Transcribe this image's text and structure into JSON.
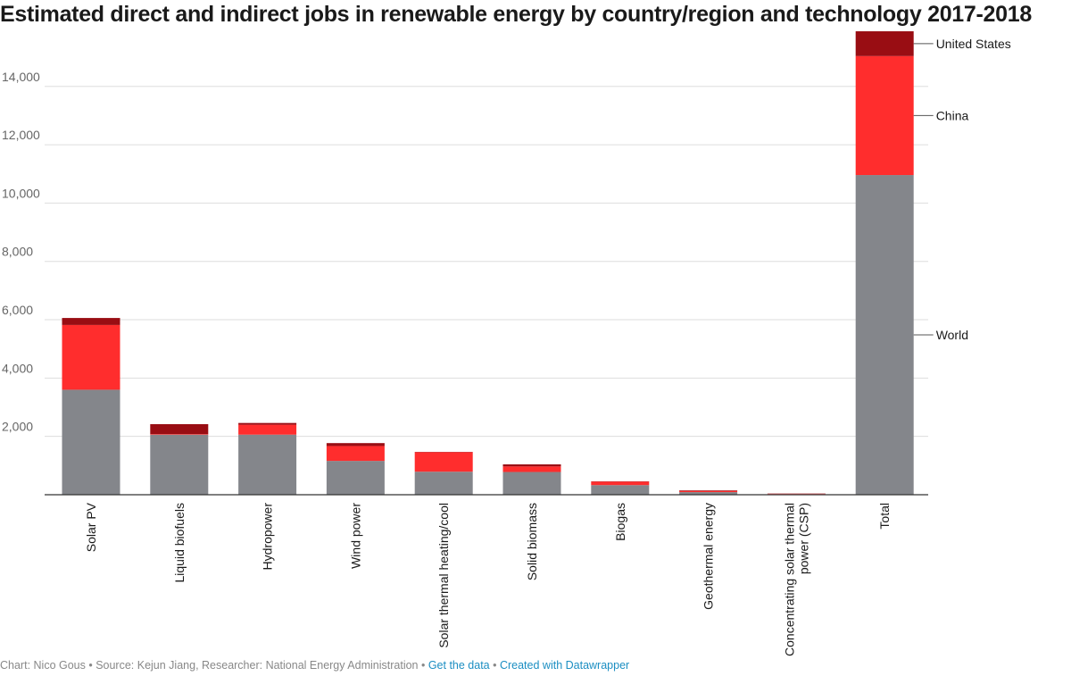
{
  "chart_data": {
    "type": "bar",
    "stacked": true,
    "title": "Estimated direct and indirect jobs in renewable energy by country/region and technology 2017-2018",
    "categories": [
      [
        "Solar PV"
      ],
      [
        "Liquid biofuels"
      ],
      [
        "Hydropower"
      ],
      [
        "Wind power"
      ],
      [
        "Solar thermal heating/cool"
      ],
      [
        "Solid biomass"
      ],
      [
        "Biogas"
      ],
      [
        "Geothermal energy"
      ],
      [
        "Concentrating solar thermal",
        "power (CSP)"
      ],
      [
        "Total"
      ]
    ],
    "series": [
      {
        "name": "World",
        "color": "#84868b",
        "values": [
          3600,
          2060,
          2060,
          1160,
          790,
          780,
          330,
          90,
          20,
          10960
        ]
      },
      {
        "name": "China",
        "color": "#ff2d2d",
        "values": [
          2220,
          20,
          340,
          510,
          670,
          190,
          120,
          40,
          10,
          4080
        ]
      },
      {
        "name": "United States",
        "color": "#990d13",
        "values": [
          240,
          340,
          60,
          100,
          10,
          70,
          10,
          20,
          10,
          850
        ]
      }
    ],
    "yticks": [
      2000,
      4000,
      6000,
      8000,
      10000,
      12000,
      14000
    ],
    "ytick_labels": [
      "2,000",
      "4,000",
      "6,000",
      "8,000",
      "10,000",
      "12,000",
      "14,000"
    ],
    "ylim": [
      0,
      16000
    ],
    "grid": true,
    "legend": "right, inline labels beside the Total bar"
  },
  "footer": {
    "credit": "Chart: Nico Gous • Source: Kejun Jiang, Researcher: National Energy Administration • ",
    "get_data": "Get the data",
    "separator": " • ",
    "created_with": "Created with Datawrapper"
  }
}
